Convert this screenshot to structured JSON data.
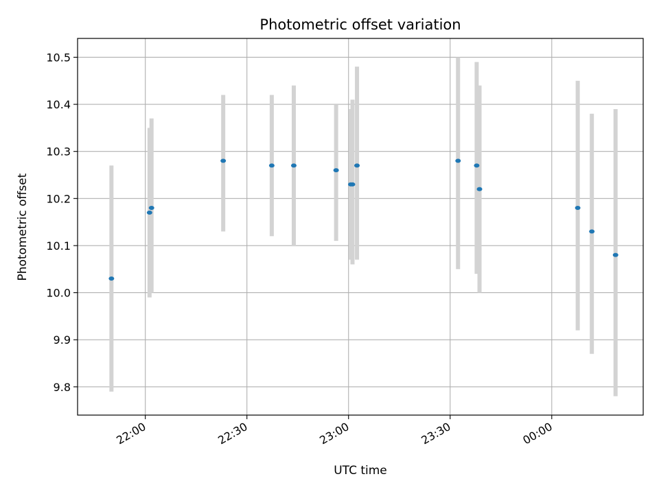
{
  "chart_data": {
    "type": "scatter",
    "title": "Photometric offset variation",
    "xlabel": "UTC time",
    "ylabel": "Photometric offset",
    "grid": true,
    "legend": "none",
    "x_axis": {
      "kind": "time",
      "range": [
        "21:40",
        "00:27"
      ],
      "ticks": [
        "22:00",
        "22:30",
        "23:00",
        "23:30",
        "00:00"
      ]
    },
    "y_axis": {
      "range": [
        9.74,
        10.54
      ],
      "ticks": [
        9.8,
        9.9,
        10.0,
        10.1,
        10.2,
        10.3,
        10.4,
        10.5
      ]
    },
    "colors": {
      "point": "#1f77b4",
      "errorbar": "#d3d3d3",
      "grid": "#b0b0b0"
    },
    "points": [
      {
        "t": "21:50:00",
        "y": 10.03,
        "ylo": 9.79,
        "yhi": 10.27
      },
      {
        "t": "22:01:15",
        "y": 10.17,
        "ylo": 9.99,
        "yhi": 10.35
      },
      {
        "t": "22:01:50",
        "y": 10.18,
        "ylo": 10.0,
        "yhi": 10.37
      },
      {
        "t": "22:23:00",
        "y": 10.28,
        "ylo": 10.13,
        "yhi": 10.42
      },
      {
        "t": "22:37:20",
        "y": 10.27,
        "ylo": 10.12,
        "yhi": 10.42
      },
      {
        "t": "22:43:50",
        "y": 10.27,
        "ylo": 10.1,
        "yhi": 10.44
      },
      {
        "t": "22:56:20",
        "y": 10.26,
        "ylo": 10.11,
        "yhi": 10.4
      },
      {
        "t": "23:00:40",
        "y": 10.23,
        "ylo": 10.07,
        "yhi": 10.39
      },
      {
        "t": "23:01:10",
        "y": 10.23,
        "ylo": 10.06,
        "yhi": 10.41
      },
      {
        "t": "23:02:30",
        "y": 10.27,
        "ylo": 10.07,
        "yhi": 10.48
      },
      {
        "t": "23:32:20",
        "y": 10.28,
        "ylo": 10.05,
        "yhi": 10.5
      },
      {
        "t": "23:37:50",
        "y": 10.27,
        "ylo": 10.04,
        "yhi": 10.49
      },
      {
        "t": "23:38:40",
        "y": 10.22,
        "ylo": 10.0,
        "yhi": 10.44
      },
      {
        "t": "00:07:40",
        "y": 10.18,
        "ylo": 9.92,
        "yhi": 10.45
      },
      {
        "t": "00:11:50",
        "y": 10.13,
        "ylo": 9.87,
        "yhi": 10.38
      },
      {
        "t": "00:18:50",
        "y": 10.08,
        "ylo": 9.78,
        "yhi": 10.39
      }
    ]
  }
}
